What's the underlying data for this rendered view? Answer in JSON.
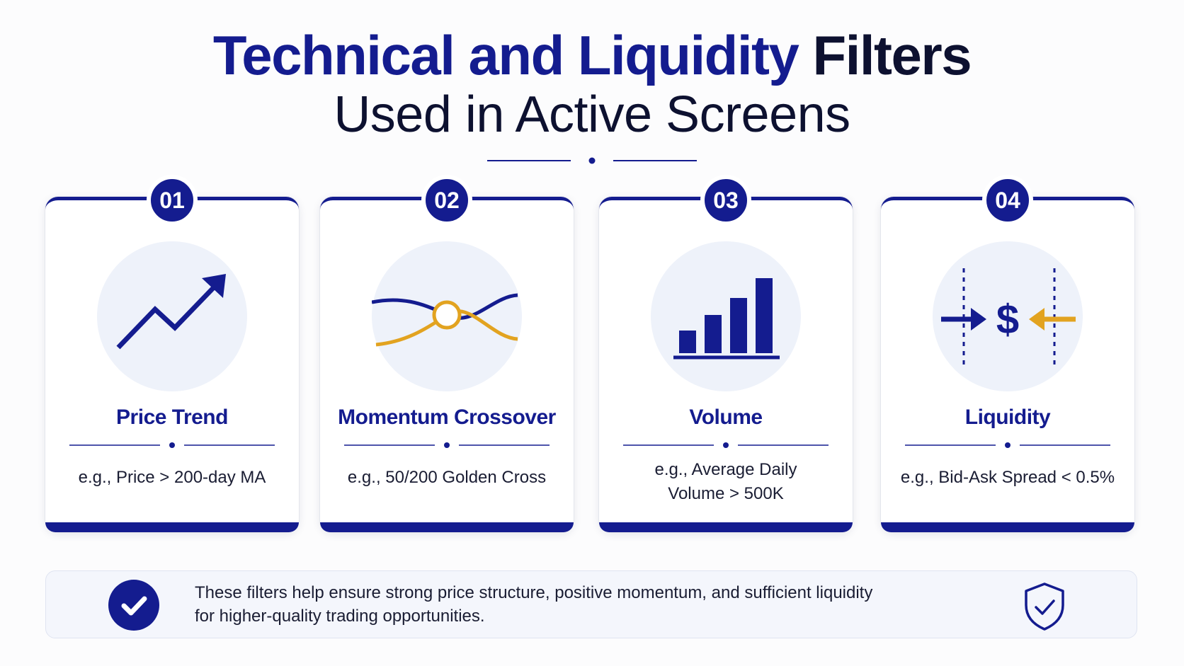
{
  "header": {
    "title_accent": "Technical and Liquidity",
    "title_dark": "Filters",
    "subtitle": "Used in Active Screens"
  },
  "cards": [
    {
      "number": "01",
      "title": "Price Trend",
      "description": "e.g., Price > 200-day MA",
      "icon": "uptrend-arrow-icon"
    },
    {
      "number": "02",
      "title": "Momentum Crossover",
      "description": "e.g., 50/200 Golden Cross",
      "icon": "crossover-icon"
    },
    {
      "number": "03",
      "title": "Volume",
      "description_line1": "e.g., Average Daily",
      "description_line2": "Volume > 500K",
      "icon": "bar-chart-icon"
    },
    {
      "number": "04",
      "title": "Liquidity",
      "description": "e.g., Bid-Ask Spread < 0.5%",
      "icon": "spread-dollar-icon"
    }
  ],
  "footer": {
    "line1": "These filters help ensure strong price structure, positive momentum, and sufficient liquidity",
    "line2": "for higher-quality trading opportunities.",
    "left_icon": "check-circle-icon",
    "right_icon": "shield-check-icon"
  },
  "colors": {
    "navy": "#141c8f",
    "gold": "#e2a320",
    "text": "#0d1130",
    "icon_bg": "#eef2fa"
  }
}
